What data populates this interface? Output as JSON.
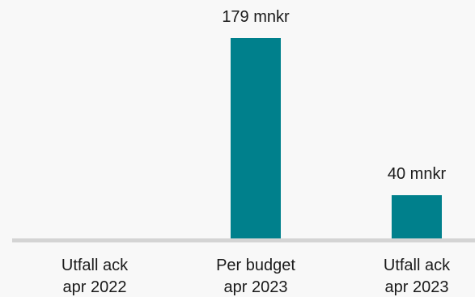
{
  "chart_data": {
    "type": "bar",
    "categories": [
      [
        "Utfall ack",
        "apr 2022"
      ],
      [
        "Per budget",
        "apr 2023"
      ],
      [
        "Utfall ack",
        "apr 2023"
      ]
    ],
    "values": [
      0,
      179,
      40
    ],
    "data_labels": [
      "",
      "179 mnkr",
      "40 mnkr"
    ],
    "unit": "mnkr",
    "ylim": [
      0,
      185
    ],
    "grid": false,
    "legend": "none",
    "colors": {
      "bar": "#00808c",
      "axis": "#d4d4d4",
      "text": "#1a1a1a"
    }
  }
}
